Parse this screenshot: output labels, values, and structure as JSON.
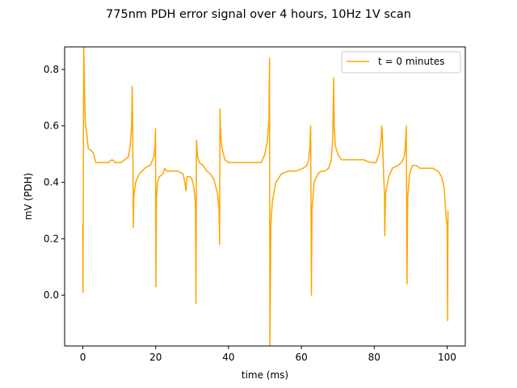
{
  "chart_data": {
    "type": "line",
    "title": "775nm PDH error signal over 4 hours, 10Hz 1V scan",
    "xlabel": "time (ms)",
    "ylabel": "mV (PDH)",
    "xlim": [
      -5,
      105
    ],
    "ylim": [
      -0.18,
      0.88
    ],
    "xticks": [
      0,
      20,
      40,
      60,
      80,
      100
    ],
    "yticks": [
      0.0,
      0.2,
      0.4,
      0.6,
      0.8
    ],
    "xtick_labels": [
      "0",
      "20",
      "40",
      "60",
      "80",
      "100"
    ],
    "ytick_labels": [
      "0.0",
      "0.2",
      "0.4",
      "0.6",
      "0.8"
    ],
    "grid": false,
    "legend_position": "top-right",
    "series": [
      {
        "name": "t = 0 minutes",
        "color": "#FFA500",
        "points": [
          [
            0.0,
            0.25
          ],
          [
            0.05,
            0.01
          ],
          [
            0.25,
            0.88
          ],
          [
            0.5,
            0.7
          ],
          [
            0.7,
            0.61
          ],
          [
            1.0,
            0.58
          ],
          [
            1.5,
            0.52
          ],
          [
            2.5,
            0.51
          ],
          [
            3.0,
            0.5
          ],
          [
            3.5,
            0.47
          ],
          [
            5.0,
            0.47
          ],
          [
            7.0,
            0.47
          ],
          [
            8.0,
            0.48
          ],
          [
            9.0,
            0.47
          ],
          [
            10.5,
            0.47
          ],
          [
            11.5,
            0.48
          ],
          [
            12.5,
            0.49
          ],
          [
            13.0,
            0.53
          ],
          [
            13.4,
            0.6
          ],
          [
            13.55,
            0.74
          ],
          [
            13.7,
            0.57
          ],
          [
            13.8,
            0.38
          ],
          [
            13.85,
            0.24
          ],
          [
            14.0,
            0.35
          ],
          [
            14.5,
            0.4
          ],
          [
            15.5,
            0.43
          ],
          [
            17.0,
            0.45
          ],
          [
            18.5,
            0.46
          ],
          [
            19.5,
            0.49
          ],
          [
            19.8,
            0.53
          ],
          [
            19.95,
            0.59
          ],
          [
            20.05,
            0.03
          ],
          [
            20.2,
            0.34
          ],
          [
            20.5,
            0.4
          ],
          [
            21.0,
            0.42
          ],
          [
            22.0,
            0.43
          ],
          [
            22.5,
            0.45
          ],
          [
            23.0,
            0.44
          ],
          [
            24.0,
            0.44
          ],
          [
            26.0,
            0.44
          ],
          [
            27.5,
            0.43
          ],
          [
            28.0,
            0.4
          ],
          [
            28.3,
            0.37
          ],
          [
            28.6,
            0.42
          ],
          [
            29.5,
            0.42
          ],
          [
            30.0,
            0.41
          ],
          [
            30.5,
            0.38
          ],
          [
            30.9,
            0.33
          ],
          [
            31.05,
            -0.03
          ],
          [
            31.2,
            0.55
          ],
          [
            31.5,
            0.49
          ],
          [
            32.0,
            0.47
          ],
          [
            33.0,
            0.46
          ],
          [
            34.0,
            0.44
          ],
          [
            35.0,
            0.43
          ],
          [
            36.0,
            0.41
          ],
          [
            37.0,
            0.36
          ],
          [
            37.4,
            0.3
          ],
          [
            37.55,
            0.18
          ],
          [
            37.65,
            0.66
          ],
          [
            37.85,
            0.57
          ],
          [
            38.2,
            0.52
          ],
          [
            39.0,
            0.48
          ],
          [
            40.0,
            0.47
          ],
          [
            42.0,
            0.47
          ],
          [
            44.0,
            0.47
          ],
          [
            46.0,
            0.47
          ],
          [
            48.0,
            0.47
          ],
          [
            49.0,
            0.47
          ],
          [
            50.0,
            0.5
          ],
          [
            50.7,
            0.55
          ],
          [
            51.1,
            0.63
          ],
          [
            51.25,
            0.84
          ],
          [
            51.35,
            -0.18
          ],
          [
            51.6,
            0.24
          ],
          [
            52.0,
            0.33
          ],
          [
            53.0,
            0.4
          ],
          [
            54.5,
            0.43
          ],
          [
            56.5,
            0.44
          ],
          [
            58.5,
            0.44
          ],
          [
            60.5,
            0.45
          ],
          [
            61.5,
            0.46
          ],
          [
            62.0,
            0.48
          ],
          [
            62.3,
            0.52
          ],
          [
            62.55,
            0.6
          ],
          [
            62.75,
            0.0
          ],
          [
            62.9,
            0.3
          ],
          [
            63.5,
            0.4
          ],
          [
            64.5,
            0.43
          ],
          [
            65.5,
            0.44
          ],
          [
            66.5,
            0.44
          ],
          [
            67.5,
            0.45
          ],
          [
            68.2,
            0.48
          ],
          [
            68.6,
            0.55
          ],
          [
            68.85,
            0.77
          ],
          [
            69.0,
            0.6
          ],
          [
            69.3,
            0.53
          ],
          [
            70.0,
            0.5
          ],
          [
            71.0,
            0.48
          ],
          [
            73.0,
            0.48
          ],
          [
            75.0,
            0.48
          ],
          [
            77.0,
            0.48
          ],
          [
            79.0,
            0.47
          ],
          [
            80.5,
            0.47
          ],
          [
            81.3,
            0.5
          ],
          [
            81.9,
            0.55
          ],
          [
            82.05,
            0.6
          ],
          [
            82.2,
            0.58
          ],
          [
            82.6,
            0.42
          ],
          [
            82.8,
            0.36
          ],
          [
            82.9,
            0.21
          ],
          [
            83.1,
            0.36
          ],
          [
            84.0,
            0.42
          ],
          [
            85.0,
            0.45
          ],
          [
            86.5,
            0.46
          ],
          [
            87.5,
            0.47
          ],
          [
            88.2,
            0.49
          ],
          [
            88.5,
            0.52
          ],
          [
            88.8,
            0.6
          ],
          [
            89.0,
            0.04
          ],
          [
            89.2,
            0.35
          ],
          [
            89.7,
            0.43
          ],
          [
            90.5,
            0.46
          ],
          [
            91.5,
            0.46
          ],
          [
            92.5,
            0.45
          ],
          [
            94.0,
            0.45
          ],
          [
            96.0,
            0.45
          ],
          [
            97.5,
            0.44
          ],
          [
            98.5,
            0.42
          ],
          [
            99.2,
            0.38
          ],
          [
            99.7,
            0.28
          ],
          [
            100.0,
            0.25
          ],
          [
            100.15,
            -0.09
          ],
          [
            100.25,
            0.3
          ]
        ]
      }
    ]
  }
}
